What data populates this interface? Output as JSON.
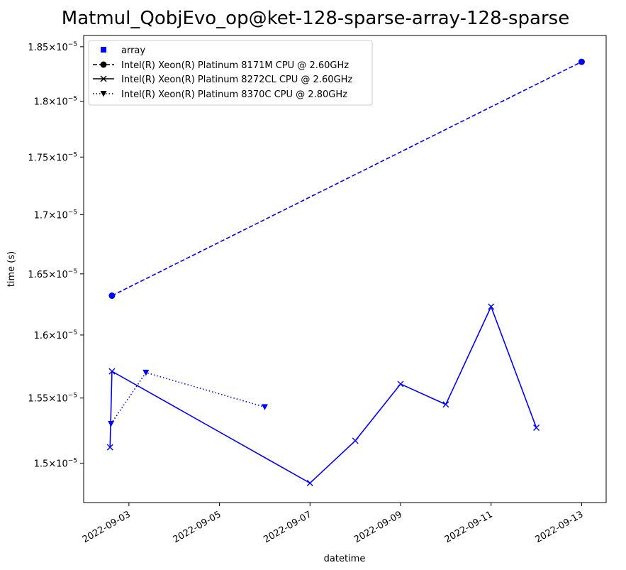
{
  "chart_data": {
    "type": "line",
    "title": "Matmul_QobjEvo_op@ket-128-sparse-array-128-sparse",
    "xlabel": "datetime",
    "ylabel": "time (s)",
    "x_ticks": [
      "2022-09-03",
      "2022-09-05",
      "2022-09-07",
      "2022-09-09",
      "2022-09-11",
      "2022-09-13"
    ],
    "y_ticks": [
      {
        "value": 1.5e-05,
        "mantissa": "1.5",
        "exp": "−5"
      },
      {
        "value": 1.55e-05,
        "mantissa": "1.55",
        "exp": "−5"
      },
      {
        "value": 1.6e-05,
        "mantissa": "1.6",
        "exp": "−5"
      },
      {
        "value": 1.65e-05,
        "mantissa": "1.65",
        "exp": "−5"
      },
      {
        "value": 1.7e-05,
        "mantissa": "1.7",
        "exp": "−5"
      },
      {
        "value": 1.75e-05,
        "mantissa": "1.75",
        "exp": "−5"
      },
      {
        "value": 1.8e-05,
        "mantissa": "1.8",
        "exp": "−5"
      },
      {
        "value": 1.85e-05,
        "mantissa": "1.85",
        "exp": "−5"
      }
    ],
    "xlim": [
      "2022-09-02T00:00",
      "2022-09-13T13:00"
    ],
    "ylim": [
      1.4705e-05,
      1.8605e-05
    ],
    "y_scale": "log",
    "grid": false,
    "legend_position": "top-left",
    "color": "#0000ff",
    "legend": [
      {
        "label": "array",
        "marker": "square",
        "linestyle": "none"
      },
      {
        "label": "Intel(R) Xeon(R) Platinum 8171M CPU @ 2.60GHz",
        "marker": "circle",
        "linestyle": "dashed"
      },
      {
        "label": "Intel(R) Xeon(R) Platinum 8272CL CPU @ 2.60GHz",
        "marker": "x",
        "linestyle": "solid"
      },
      {
        "label": "Intel(R) Xeon(R) Platinum 8370C CPU @ 2.80GHz",
        "marker": "triangle-down",
        "linestyle": "dotted"
      }
    ],
    "series": [
      {
        "name": "Intel(R) Xeon(R) Platinum 8171M CPU @ 2.60GHz",
        "marker": "circle",
        "linestyle": "dashed",
        "x": [
          "2022-09-02T15:00",
          "2022-09-13T00:00"
        ],
        "y": [
          1.632e-05,
          1.836e-05
        ]
      },
      {
        "name": "Intel(R) Xeon(R) Platinum 8272CL CPU @ 2.60GHz",
        "marker": "x",
        "linestyle": "solid",
        "x": [
          "2022-09-02T14:00",
          "2022-09-02T15:00",
          "2022-09-07T00:00",
          "2022-09-08T00:00",
          "2022-09-09T00:00",
          "2022-09-10T00:00",
          "2022-09-11T00:00",
          "2022-09-12T00:00"
        ],
        "y": [
          1.512e-05,
          1.571e-05,
          1.485e-05,
          1.517e-05,
          1.561e-05,
          1.545e-05,
          1.623e-05,
          1.527e-05
        ]
      },
      {
        "name": "Intel(R) Xeon(R) Platinum 8370C CPU @ 2.80GHz",
        "marker": "triangle-down",
        "linestyle": "dotted",
        "x": [
          "2022-09-02T14:30",
          "2022-09-03T09:00",
          "2022-09-06T00:00"
        ],
        "y": [
          1.53e-05,
          1.57e-05,
          1.543e-05
        ]
      }
    ]
  }
}
